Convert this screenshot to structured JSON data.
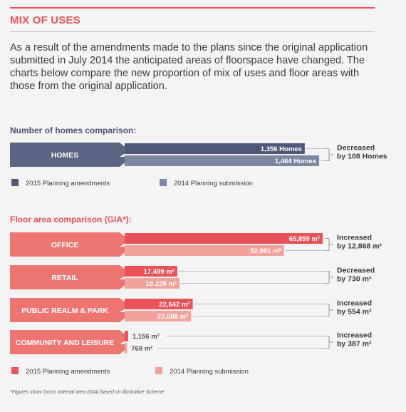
{
  "section_title": "MIX OF USES",
  "intro": "As a result of the amendments made to the plans since the original application submitted in July 2014 the anticipated areas of floorspace have changed. The charts below compare the new proportion of mix of uses and floor areas with those from the original application.",
  "footnote": "*Figures show Gross Internal area (GIA) based on illustrative Scheme",
  "colors": {
    "accent": "#e8525a",
    "homes_2015": "#4f5877",
    "homes_2014": "#7d86a3",
    "homes_band": "#5b6584",
    "floor_2015": "#ea5159",
    "floor_2014": "#f3a19b",
    "floor_band": "#ee7470"
  },
  "chart_data": [
    {
      "type": "bar",
      "title": "Number of homes comparison:",
      "categories": [
        "HOMES"
      ],
      "series": [
        {
          "name": "2015 Planning amendments",
          "values": [
            1356
          ],
          "labels": [
            "1,356 Homes"
          ]
        },
        {
          "name": "2014 Planning submission",
          "values": [
            1464
          ],
          "labels": [
            "1,464 Homes"
          ]
        }
      ],
      "change_labels": [
        [
          "Decreased",
          "by 108 Homes"
        ]
      ]
    },
    {
      "type": "bar",
      "title": "Floor area comparison (GIA*):",
      "categories": [
        "OFFICE",
        "RETAIL",
        "PUBLIC REALM & PARK",
        "COMMUNITY AND LEISURE"
      ],
      "series": [
        {
          "name": "2015 Planning amendments",
          "values": [
            65859,
            17499,
            22642,
            1156
          ],
          "labels": [
            "65,859 m²",
            "17,499 m²",
            "22,642 m²",
            "1,156 m²"
          ]
        },
        {
          "name": "2014 Planning submission",
          "values": [
            52991,
            18229,
            22088,
            769
          ],
          "labels": [
            "52,991 m²",
            "18,229 m²",
            "22,088 m²",
            "769 m²"
          ]
        }
      ],
      "change_labels": [
        [
          "Increased",
          "by 12,868 m²"
        ],
        [
          "Decreased",
          "by 730 m²"
        ],
        [
          "Increased",
          "by 554 m²"
        ],
        [
          "Increased",
          "by 387 m²"
        ]
      ]
    }
  ]
}
